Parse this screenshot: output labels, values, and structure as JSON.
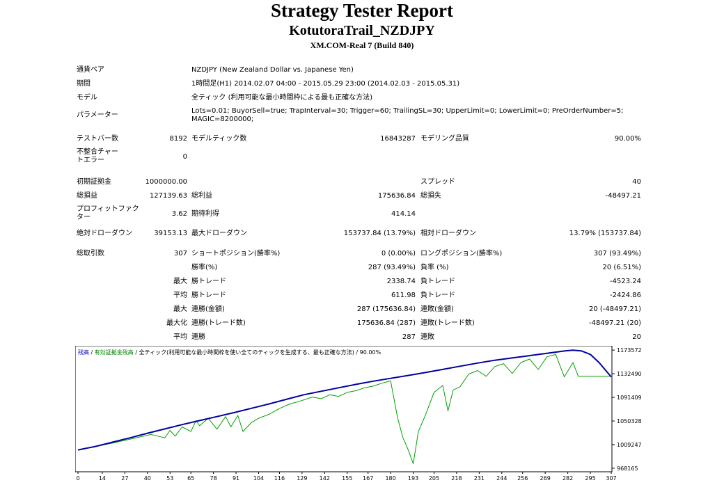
{
  "header": {
    "title": "Strategy Tester Report",
    "subtitle": "KotutoraTrail_NZDJPY",
    "build": "XM.COM-Real 7 (Build 840)"
  },
  "info": {
    "pair_label": "通貨ペア",
    "pair_value": "NZDJPY (New Zealand Dollar vs. Japanese Yen)",
    "period_label": "期間",
    "period_value": "1時間足(H1) 2014.02.07 04:00 - 2015.05.29 23:00 (2014.02.03 - 2015.05.31)",
    "model_label": "モデル",
    "model_value": "全ティック (利用可能な最小時間枠による最も正確な方法)",
    "params_label": "パラメーター",
    "params_value": "Lots=0.01; BuyorSell=true; TrapInterval=30; Trigger=60; TrailingSL=30; UpperLimit=0; LowerLimit=0; PreOrderNumber=5; MAGIC=8200000;"
  },
  "stats": {
    "bars_label": "テストバー数",
    "bars_value": "8192",
    "ticks_label": "モデルティック数",
    "ticks_value": "16843287",
    "quality_label": "モデリング品質",
    "quality_value": "90.00%",
    "mismatch_label": "不整合チャートエラー",
    "mismatch_value": "0",
    "deposit_label": "初期証拠金",
    "deposit_value": "1000000.00",
    "spread_label": "スプレッド",
    "spread_value": "40",
    "net_label": "総損益",
    "net_value": "127139.63",
    "gross_profit_label": "総利益",
    "gross_profit_value": "175636.84",
    "gross_loss_label": "総損失",
    "gross_loss_value": "-48497.21",
    "pf_label": "プロフィットファクター",
    "pf_value": "3.62",
    "payoff_label": "期待利得",
    "payoff_value": "414.14",
    "abs_dd_label": "絶対ドローダウン",
    "abs_dd_value": "39153.13",
    "max_dd_label": "最大ドローダウン",
    "max_dd_value": "153737.84 (13.79%)",
    "rel_dd_label": "相対ドローダウン",
    "rel_dd_value": "13.79% (153737.84)",
    "trades_label": "総取引数",
    "trades_value": "307",
    "short_label": "ショートポジション(勝率%)",
    "short_value": "0 (0.00%)",
    "long_label": "ロングポジション(勝率%)",
    "long_value": "307 (93.49%)",
    "winrate_label": "勝率(%)",
    "winrate_value": "287 (93.49%)",
    "lossrate_label": "負率 (%)",
    "lossrate_value": "20 (6.51%)",
    "max_prefix": "最大",
    "max_win_label": "勝トレード",
    "max_win_value": "2338.74",
    "max_loss_label": "負トレード",
    "max_loss_value": "-4523.24",
    "avg_prefix": "平均",
    "avg_win_label": "勝トレード",
    "avg_win_value": "611.98",
    "avg_loss_label": "負トレード",
    "avg_loss_value": "-2424.86",
    "max2_prefix": "最大",
    "cons_wins_label": "連勝(金額)",
    "cons_wins_value": "287 (175636.84)",
    "cons_losses_label": "連敗(金額)",
    "cons_losses_value": "20 (-48497.21)",
    "maximal_prefix": "最大化",
    "consprofit_label": "連勝(トレード数)",
    "consprofit_value": "175636.84 (287)",
    "consloss_label": "連敗(トレード数)",
    "consloss_value": "-48497.21 (20)",
    "avg2_prefix": "平均",
    "avgwins_label": "連勝",
    "avgwins_value": "287",
    "avglosses_label": "連敗",
    "avglosses_value": "20"
  },
  "chart_data": {
    "type": "line",
    "legend": {
      "balance": "残高",
      "sep1": " / ",
      "equity": "有効証拠金残高",
      "sep2": " / ",
      "rest": "全ティック(利用可能な最小時間枠を使い全てのティックを生成する、最も正確な方法) / 90.00%"
    },
    "colors": {
      "balance": "#0000a0",
      "equity": "#00a000",
      "legend_balance": "#0000c0",
      "legend_equity": "#008000"
    },
    "x_ticks": [
      "0",
      "14",
      "27",
      "40",
      "53",
      "65",
      "78",
      "91",
      "104",
      "116",
      "129",
      "142",
      "155",
      "167",
      "180",
      "193",
      "205",
      "218",
      "231",
      "244",
      "256",
      "269",
      "282",
      "295",
      "307"
    ],
    "y_ticks": [
      "1173572",
      "1132490",
      "1091409",
      "1050328",
      "1009247",
      "968165"
    ],
    "xlim": [
      0,
      307
    ],
    "ylim": [
      962000,
      1181000
    ],
    "series": [
      {
        "key": "balance",
        "x": [
          0,
          10,
          20,
          30,
          40,
          50,
          60,
          70,
          80,
          90,
          100,
          110,
          120,
          130,
          140,
          150,
          160,
          170,
          180,
          190,
          200,
          210,
          220,
          230,
          240,
          250,
          260,
          270,
          280,
          285,
          290,
          295,
          300,
          307
        ],
        "values": [
          1000000,
          1006000,
          1013500,
          1021000,
          1029000,
          1036500,
          1044000,
          1051000,
          1058000,
          1065000,
          1072500,
          1080000,
          1088000,
          1096000,
          1102000,
          1108000,
          1114000,
          1119500,
          1124500,
          1129500,
          1134500,
          1140000,
          1145500,
          1151000,
          1156000,
          1160000,
          1164000,
          1168000,
          1172000,
          1173500,
          1172000,
          1166000,
          1152000,
          1127000
        ]
      },
      {
        "key": "equity",
        "x": [
          0,
          20,
          35,
          42,
          50,
          53,
          56,
          60,
          65,
          68,
          70,
          75,
          80,
          85,
          88,
          92,
          95,
          100,
          104,
          110,
          116,
          122,
          128,
          135,
          140,
          145,
          150,
          155,
          160,
          165,
          170,
          175,
          180,
          184,
          187,
          190,
          193,
          196,
          200,
          205,
          210,
          213,
          216,
          220,
          225,
          230,
          235,
          240,
          245,
          250,
          255,
          260,
          265,
          270,
          275,
          280,
          285,
          288,
          292,
          300,
          307
        ],
        "values": [
          1000000,
          1012000,
          1022000,
          1027000,
          1021000,
          1034000,
          1024000,
          1040000,
          1032000,
          1051000,
          1042000,
          1055000,
          1036000,
          1058000,
          1040000,
          1060000,
          1032000,
          1048000,
          1055000,
          1062000,
          1072000,
          1080000,
          1085000,
          1092000,
          1089000,
          1096000,
          1093000,
          1100000,
          1103000,
          1108000,
          1111000,
          1116000,
          1120000,
          1056000,
          1022000,
          1001000,
          976000,
          1032000,
          1060000,
          1100000,
          1112000,
          1068000,
          1104000,
          1110000,
          1132000,
          1138000,
          1128000,
          1145000,
          1150000,
          1133000,
          1152000,
          1158000,
          1140000,
          1162000,
          1166000,
          1127000,
          1152000,
          1128000,
          1128000,
          1128000,
          1128000
        ]
      }
    ]
  }
}
